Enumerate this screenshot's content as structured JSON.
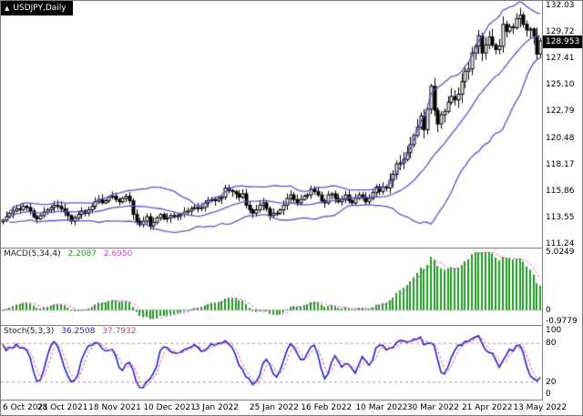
{
  "symbol_label": "USDJPY,Daily",
  "main_chart": {
    "price_min": 110.9,
    "price_max": 132.45,
    "price_labels": [
      "132.03",
      "129.72",
      "127.41",
      "125.10",
      "122.79",
      "120.48",
      "118.17",
      "115.86",
      "113.55",
      "111.24"
    ],
    "current_price": "128.953",
    "current_price_value": 128.953,
    "colors": {
      "band": "#5a52cf",
      "candle_outline": "#000000",
      "bull_fill": "#ffffff",
      "bear_fill": "#000000",
      "price_tag_bg": "#000000",
      "price_tag_fg": "#ffffff"
    }
  },
  "macd_panel": {
    "title": "MACD(5,34,4)",
    "value_main": "2.2087",
    "value_signal": "2.6950",
    "axis_labels": [
      "5.0249",
      "0",
      "-0.9779"
    ],
    "max": 5.0249,
    "min": -0.9779,
    "colors": {
      "hist": "#1e9b1e",
      "signal": "#dd55dd",
      "zero_line": "#c0c0c0"
    }
  },
  "stoch_panel": {
    "title": "Stoch(5,3,3)",
    "value_main": "36.2508",
    "value_signal": "37.7932",
    "axis_labels": [
      "100",
      "80",
      "20",
      "0"
    ],
    "levels": [
      80,
      20
    ],
    "colors": {
      "main": "#2222cc",
      "signal": "#dd5599",
      "level": "#d07a7a"
    }
  },
  "x_axis": {
    "labels": [
      "6 Oct 2021",
      "28 Oct 2021",
      "18 Nov 2021",
      "10 Dec 2021",
      "3 Jan 2022",
      "25 Jan 2022",
      "16 Feb 2022",
      "10 Mar 2022",
      "30 Mar 2022",
      "21 Apr 2022",
      "13 May 2022"
    ]
  },
  "chart_data": {
    "type": "candlestick+indicators",
    "symbol": "USDJPY",
    "timeframe": "Daily",
    "title": "USDJPY,Daily",
    "ylim": [
      110.9,
      132.45
    ],
    "bar_count": 158,
    "x_label_indices": [
      1,
      17,
      32,
      48,
      63,
      79,
      94,
      110,
      125,
      141,
      156
    ],
    "closes": [
      113.3,
      113.6,
      113.9,
      114.1,
      114.3,
      114.2,
      114.5,
      114.4,
      114.1,
      113.6,
      113.4,
      113.7,
      114.0,
      114.2,
      114.4,
      114.6,
      114.5,
      114.3,
      114.0,
      113.7,
      113.2,
      113.5,
      113.8,
      114.1,
      113.9,
      114.2,
      114.5,
      114.9,
      115.1,
      114.8,
      115.0,
      115.3,
      115.4,
      115.1,
      114.9,
      115.2,
      115.4,
      115.0,
      113.8,
      113.2,
      112.9,
      113.2,
      113.6,
      112.8,
      113.1,
      113.5,
      113.8,
      113.4,
      113.5,
      113.7,
      113.6,
      113.7,
      113.8,
      114.0,
      114.1,
      114.3,
      114.4,
      114.3,
      114.4,
      114.8,
      115.0,
      115.1,
      115.0,
      115.2,
      115.3,
      116.1,
      115.9,
      115.8,
      115.6,
      115.3,
      115.6,
      114.6,
      114.2,
      113.9,
      114.2,
      114.6,
      114.8,
      114.3,
      113.7,
      113.9,
      113.9,
      114.2,
      114.6,
      115.2,
      115.5,
      115.1,
      114.8,
      115.1,
      115.4,
      115.5,
      116.0,
      115.8,
      115.5,
      115.0,
      114.8,
      115.5,
      115.6,
      115.2,
      114.9,
      115.1,
      115.5,
      115.0,
      114.8,
      115.2,
      115.5,
      115.3,
      114.9,
      115.2,
      115.7,
      116.2,
      115.8,
      116.2,
      116.1,
      116.8,
      117.3,
      118.2,
      118.3,
      118.6,
      119.2,
      119.9,
      120.7,
      121.4,
      122.4,
      121.2,
      123.0,
      125.0,
      122.9,
      121.7,
      122.5,
      122.8,
      123.6,
      124.1,
      123.8,
      124.3,
      125.4,
      126.3,
      126.5,
      127.9,
      128.5,
      129.4,
      127.9,
      128.6,
      129.3,
      128.6,
      128.2,
      128.5,
      130.4,
      129.8,
      130.2,
      130.1,
      130.9,
      131.2,
      130.4,
      129.9,
      130.0,
      129.4,
      127.8,
      128.95
    ],
    "indicators": [
      {
        "name": "Bollinger Bands",
        "params": [
          20,
          2
        ],
        "applied_to": "close"
      },
      {
        "name": "MACD",
        "params": [
          5,
          34,
          4
        ],
        "current_values": [
          2.2087,
          2.695
        ],
        "axis_range": [
          -0.9779,
          5.0249
        ]
      },
      {
        "name": "Stochastic",
        "params": [
          5,
          3,
          3
        ],
        "current_values": [
          36.2508,
          37.7932
        ],
        "levels": [
          20,
          80
        ],
        "axis_range": [
          0,
          100
        ]
      }
    ]
  }
}
